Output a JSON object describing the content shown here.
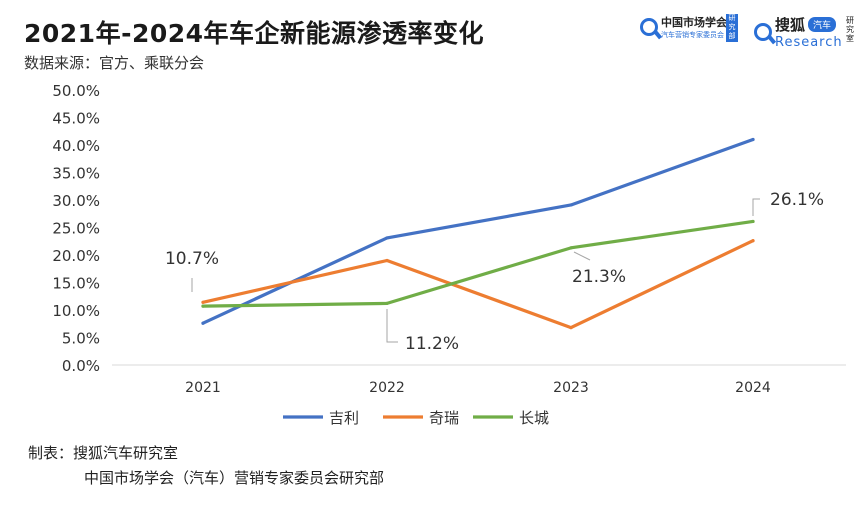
{
  "header": {
    "title": "2021年-2024年车企新能源渗透率变化",
    "subtitle": "数据来源：官方、乘联分会"
  },
  "logos": {
    "left": {
      "name": "中国市场学会",
      "tagline": "汽车营销专家委员会",
      "stamp": "研究部",
      "icon": "magnifier-q-icon"
    },
    "right": {
      "name": "搜狐",
      "pill": "汽车",
      "word": "Research",
      "side": "研究室",
      "icon": "magnifier-r-icon"
    }
  },
  "footer": {
    "line1": "制表：搜狐汽车研究室",
    "line2": "中国市场学会（汽车）营销专家委员会研究部"
  },
  "chart_data": {
    "type": "line",
    "categories": [
      "2021",
      "2022",
      "2023",
      "2024"
    ],
    "ylim": [
      0,
      50
    ],
    "yticks": [
      "0.0%",
      "5.0%",
      "10.0%",
      "15.0%",
      "20.0%",
      "25.0%",
      "30.0%",
      "35.0%",
      "40.0%",
      "45.0%",
      "50.0%"
    ],
    "grid": false,
    "legend_position": "bottom",
    "series": [
      {
        "name": "吉利",
        "color": "#4472c4",
        "values": [
          7.6,
          23.1,
          29.1,
          41.0
        ]
      },
      {
        "name": "奇瑞",
        "color": "#ed7d31",
        "values": [
          11.4,
          19.0,
          6.8,
          22.6
        ]
      },
      {
        "name": "长城",
        "color": "#70ad47",
        "values": [
          10.7,
          11.2,
          21.3,
          26.1
        ]
      }
    ],
    "annotations": [
      {
        "text": "10.7%",
        "series": 2,
        "index": 0
      },
      {
        "text": "11.2%",
        "series": 2,
        "index": 1
      },
      {
        "text": "21.3%",
        "series": 2,
        "index": 2
      },
      {
        "text": "26.1%",
        "series": 2,
        "index": 3
      }
    ]
  }
}
